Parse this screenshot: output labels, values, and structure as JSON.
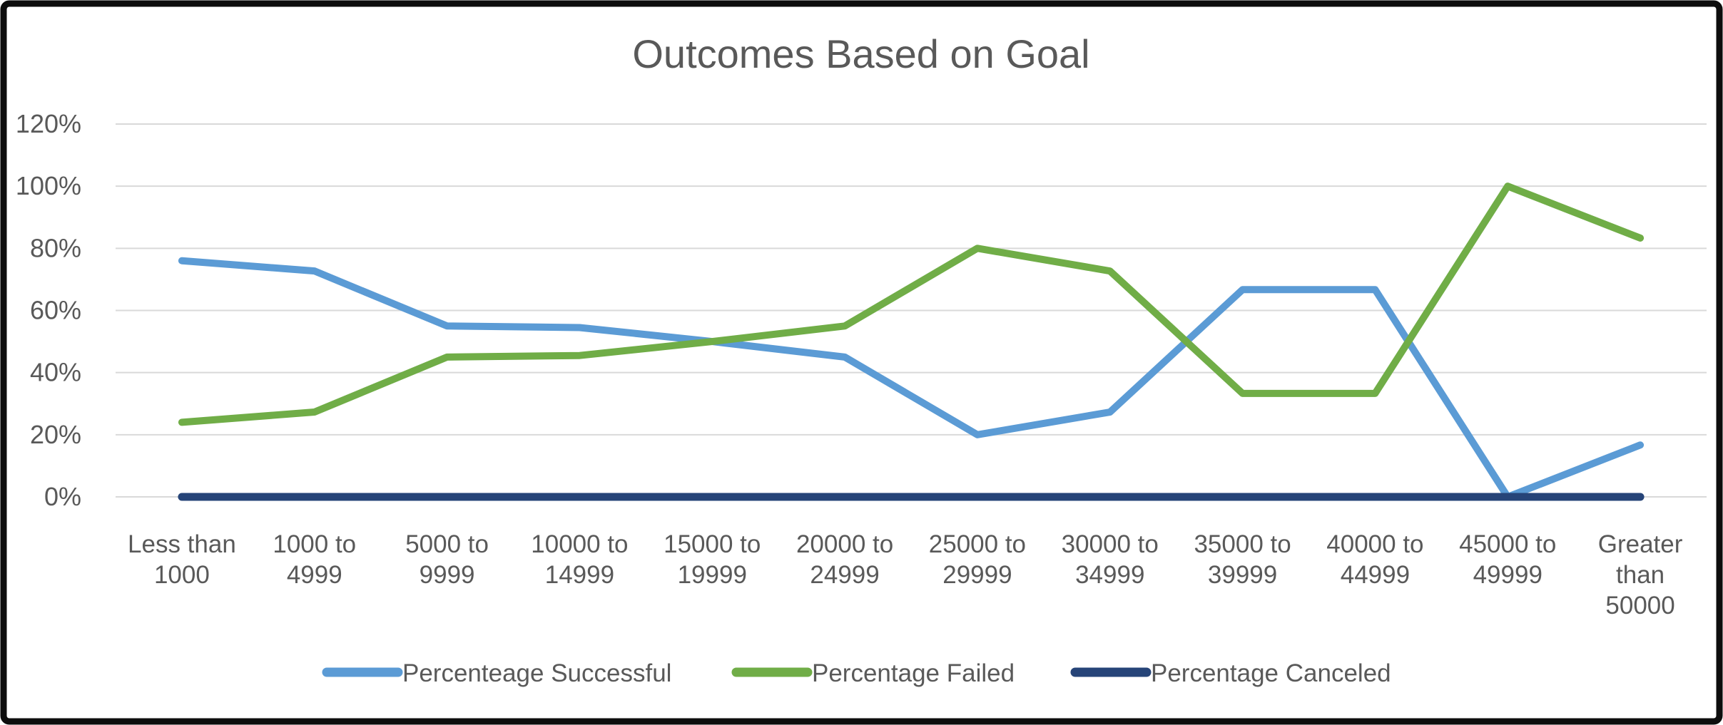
{
  "frame": {
    "border_color": "#0d0d0d",
    "background": "#ffffff"
  },
  "chart_data": {
    "type": "line",
    "title": "Outcomes Based on Goal",
    "categories": [
      "Less than 1000",
      "1000 to 4999",
      "5000 to 9999",
      "10000 to 14999",
      "15000 to 19999",
      "20000 to 24999",
      "25000 to 29999",
      "30000 to 34999",
      "35000 to 39999",
      "40000 to 44999",
      "45000 to 49999",
      "Greater than 50000"
    ],
    "category_label_lines": [
      [
        "Less than",
        "1000"
      ],
      [
        "1000 to",
        "4999"
      ],
      [
        "5000 to",
        "9999"
      ],
      [
        "10000 to",
        "14999"
      ],
      [
        "15000 to",
        "19999"
      ],
      [
        "20000 to",
        "24999"
      ],
      [
        "25000 to",
        "29999"
      ],
      [
        "30000 to",
        "34999"
      ],
      [
        "35000 to",
        "39999"
      ],
      [
        "40000 to",
        "44999"
      ],
      [
        "45000 to",
        "49999"
      ],
      [
        "Greater",
        "than",
        "50000"
      ]
    ],
    "series": [
      {
        "name": "Percenteage Successful",
        "color": "#5B9BD5",
        "values": [
          76,
          72.7,
          55,
          54.5,
          50,
          45,
          20,
          27.3,
          66.7,
          66.7,
          0,
          16.7
        ]
      },
      {
        "name": "Percentage Failed",
        "color": "#70AD47",
        "values": [
          24,
          27.3,
          45,
          45.5,
          50,
          55,
          80,
          72.7,
          33.3,
          33.3,
          100,
          83.3
        ]
      },
      {
        "name": "Percentage Canceled",
        "color": "#264478",
        "values": [
          0,
          0,
          0,
          0,
          0,
          0,
          0,
          0,
          0,
          0,
          0,
          0
        ]
      }
    ],
    "y_axis": {
      "min": 0,
      "max": 120,
      "step": 20,
      "tick_labels": [
        "0%",
        "20%",
        "40%",
        "60%",
        "80%",
        "100%",
        "120%"
      ],
      "format": "percent"
    },
    "grid": true,
    "legend_position": "bottom",
    "colors": {
      "gridline": "#D9D9D9",
      "text": "#595959",
      "title": "#595959"
    }
  }
}
